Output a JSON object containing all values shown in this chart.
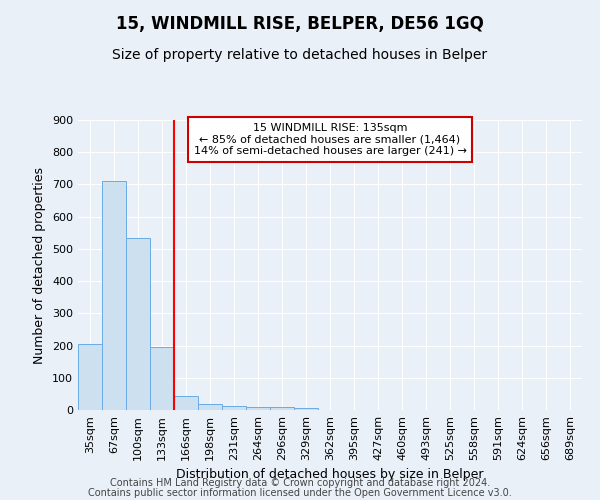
{
  "title": "15, WINDMILL RISE, BELPER, DE56 1GQ",
  "subtitle": "Size of property relative to detached houses in Belper",
  "xlabel": "Distribution of detached houses by size in Belper",
  "ylabel": "Number of detached properties",
  "categories": [
    "35sqm",
    "67sqm",
    "100sqm",
    "133sqm",
    "166sqm",
    "198sqm",
    "231sqm",
    "264sqm",
    "296sqm",
    "329sqm",
    "362sqm",
    "395sqm",
    "427sqm",
    "460sqm",
    "493sqm",
    "525sqm",
    "558sqm",
    "591sqm",
    "624sqm",
    "656sqm",
    "689sqm"
  ],
  "values": [
    205,
    710,
    535,
    195,
    43,
    18,
    13,
    10,
    8,
    7,
    0,
    0,
    0,
    0,
    0,
    0,
    0,
    0,
    0,
    0,
    0
  ],
  "bar_color": "#cce0f0",
  "bar_edge_color": "#6aace6",
  "red_line_x": 3.5,
  "ann_line1": "15 WINDMILL RISE: 135sqm",
  "ann_line2": "← 85% of detached houses are smaller (1,464)",
  "ann_line3": "14% of semi-detached houses are larger (241) →",
  "annotation_box_color": "#ffffff",
  "annotation_box_edge_color": "#cc0000",
  "ylim": [
    0,
    900
  ],
  "yticks": [
    0,
    100,
    200,
    300,
    400,
    500,
    600,
    700,
    800,
    900
  ],
  "footer_line1": "Contains HM Land Registry data © Crown copyright and database right 2024.",
  "footer_line2": "Contains public sector information licensed under the Open Government Licence v3.0.",
  "background_color": "#eaf0f8",
  "grid_color": "#ffffff",
  "title_fontsize": 12,
  "subtitle_fontsize": 10,
  "axis_label_fontsize": 9,
  "tick_fontsize": 8,
  "ann_fontsize": 8,
  "footer_fontsize": 7
}
